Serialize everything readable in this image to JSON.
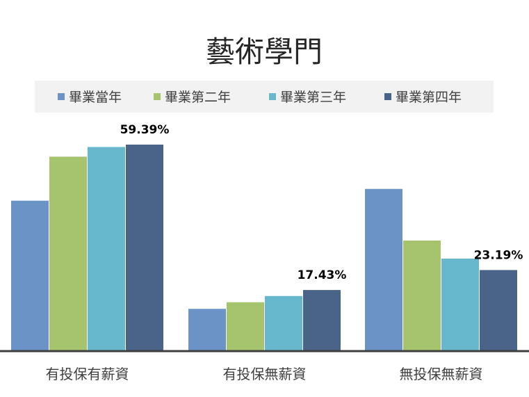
{
  "chart_data": {
    "type": "bar",
    "title": "藝術學門",
    "categories": [
      "有投保有薪資",
      "有投保無薪資",
      "無投保無薪資"
    ],
    "series": [
      {
        "name": "畢業當年",
        "color": "#6b93c5",
        "values": [
          43.2,
          12.0,
          46.6
        ]
      },
      {
        "name": "畢業第二年",
        "color": "#a6c36d",
        "values": [
          55.9,
          13.9,
          31.7
        ]
      },
      {
        "name": "畢業第三年",
        "color": "#67b8cd",
        "values": [
          58.7,
          15.7,
          26.5
        ]
      },
      {
        "name": "畢業第四年",
        "color": "#4a6388",
        "values": [
          59.39,
          17.43,
          23.19
        ]
      }
    ],
    "data_labels": [
      {
        "category_index": 0,
        "series_index": 3,
        "text": "59.39%"
      },
      {
        "category_index": 1,
        "series_index": 3,
        "text": "17.43%"
      },
      {
        "category_index": 2,
        "series_index": 3,
        "text": "23.19%"
      }
    ],
    "ylim": [
      0,
      65
    ],
    "grid": false,
    "legend_position": "top"
  }
}
